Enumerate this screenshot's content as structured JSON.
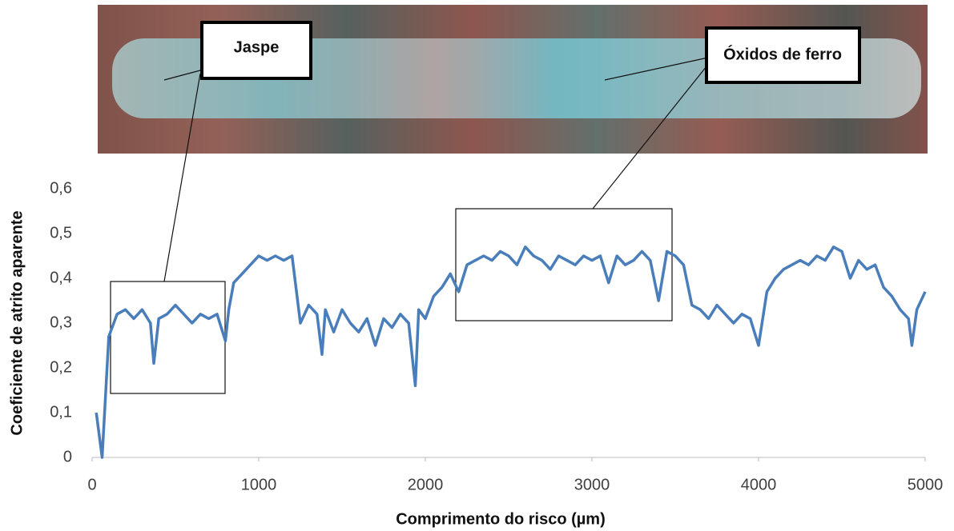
{
  "chart_data": {
    "type": "line",
    "x_label": "Comprimento do risco (µm)",
    "y_label": "Coeficiente de atrito aparente",
    "annotations": [
      "Jaspe",
      "Óxidos de ferro"
    ],
    "xlim": [
      0,
      5000
    ],
    "xticks": [
      0,
      1000,
      2000,
      3000,
      4000,
      5000
    ],
    "ylim": [
      0,
      0.6
    ],
    "yticks": [
      0,
      {
        "value": 0.1,
        "label": "0,1"
      },
      {
        "value": 0.2,
        "label": "0,2"
      },
      {
        "value": 0.3,
        "label": "0,3"
      },
      {
        "value": 0.4,
        "label": "0,4"
      },
      {
        "value": 0.5,
        "label": "0,5"
      },
      {
        "value": 0.6,
        "label": "0,6"
      }
    ],
    "grid": false,
    "series": [
      {
        "color": "#4a7ebb",
        "x": [
          25,
          60,
          100,
          150,
          200,
          250,
          300,
          350,
          370,
          400,
          450,
          500,
          550,
          600,
          650,
          700,
          750,
          800,
          820,
          850,
          900,
          950,
          1000,
          1050,
          1100,
          1150,
          1200,
          1250,
          1300,
          1350,
          1380,
          1400,
          1450,
          1500,
          1550,
          1600,
          1650,
          1700,
          1750,
          1800,
          1850,
          1900,
          1940,
          1960,
          2000,
          2050,
          2100,
          2150,
          2200,
          2250,
          2300,
          2350,
          2400,
          2450,
          2500,
          2550,
          2600,
          2650,
          2700,
          2750,
          2800,
          2850,
          2900,
          2950,
          3000,
          3050,
          3100,
          3150,
          3200,
          3250,
          3300,
          3350,
          3400,
          3450,
          3500,
          3550,
          3600,
          3650,
          3700,
          3750,
          3800,
          3850,
          3900,
          3950,
          4000,
          4050,
          4100,
          4150,
          4200,
          4250,
          4300,
          4350,
          4400,
          4450,
          4500,
          4550,
          4600,
          4650,
          4700,
          4750,
          4800,
          4850,
          4900,
          4920,
          4950,
          5000
        ],
        "values": [
          0.1,
          0.0,
          0.27,
          0.32,
          0.33,
          0.31,
          0.33,
          0.3,
          0.21,
          0.31,
          0.32,
          0.34,
          0.32,
          0.3,
          0.32,
          0.31,
          0.32,
          0.26,
          0.33,
          0.39,
          0.41,
          0.43,
          0.45,
          0.44,
          0.45,
          0.44,
          0.45,
          0.3,
          0.34,
          0.32,
          0.23,
          0.33,
          0.28,
          0.33,
          0.3,
          0.28,
          0.31,
          0.25,
          0.31,
          0.29,
          0.32,
          0.3,
          0.16,
          0.33,
          0.31,
          0.36,
          0.38,
          0.41,
          0.37,
          0.43,
          0.44,
          0.45,
          0.44,
          0.46,
          0.45,
          0.43,
          0.47,
          0.45,
          0.44,
          0.42,
          0.45,
          0.44,
          0.43,
          0.45,
          0.44,
          0.45,
          0.39,
          0.45,
          0.43,
          0.44,
          0.46,
          0.44,
          0.35,
          0.46,
          0.45,
          0.43,
          0.34,
          0.33,
          0.31,
          0.34,
          0.32,
          0.3,
          0.32,
          0.31,
          0.25,
          0.37,
          0.4,
          0.42,
          0.43,
          0.44,
          0.43,
          0.45,
          0.44,
          0.47,
          0.46,
          0.4,
          0.44,
          0.42,
          0.43,
          0.38,
          0.36,
          0.33,
          0.31,
          0.25,
          0.33,
          0.37
        ]
      }
    ]
  }
}
